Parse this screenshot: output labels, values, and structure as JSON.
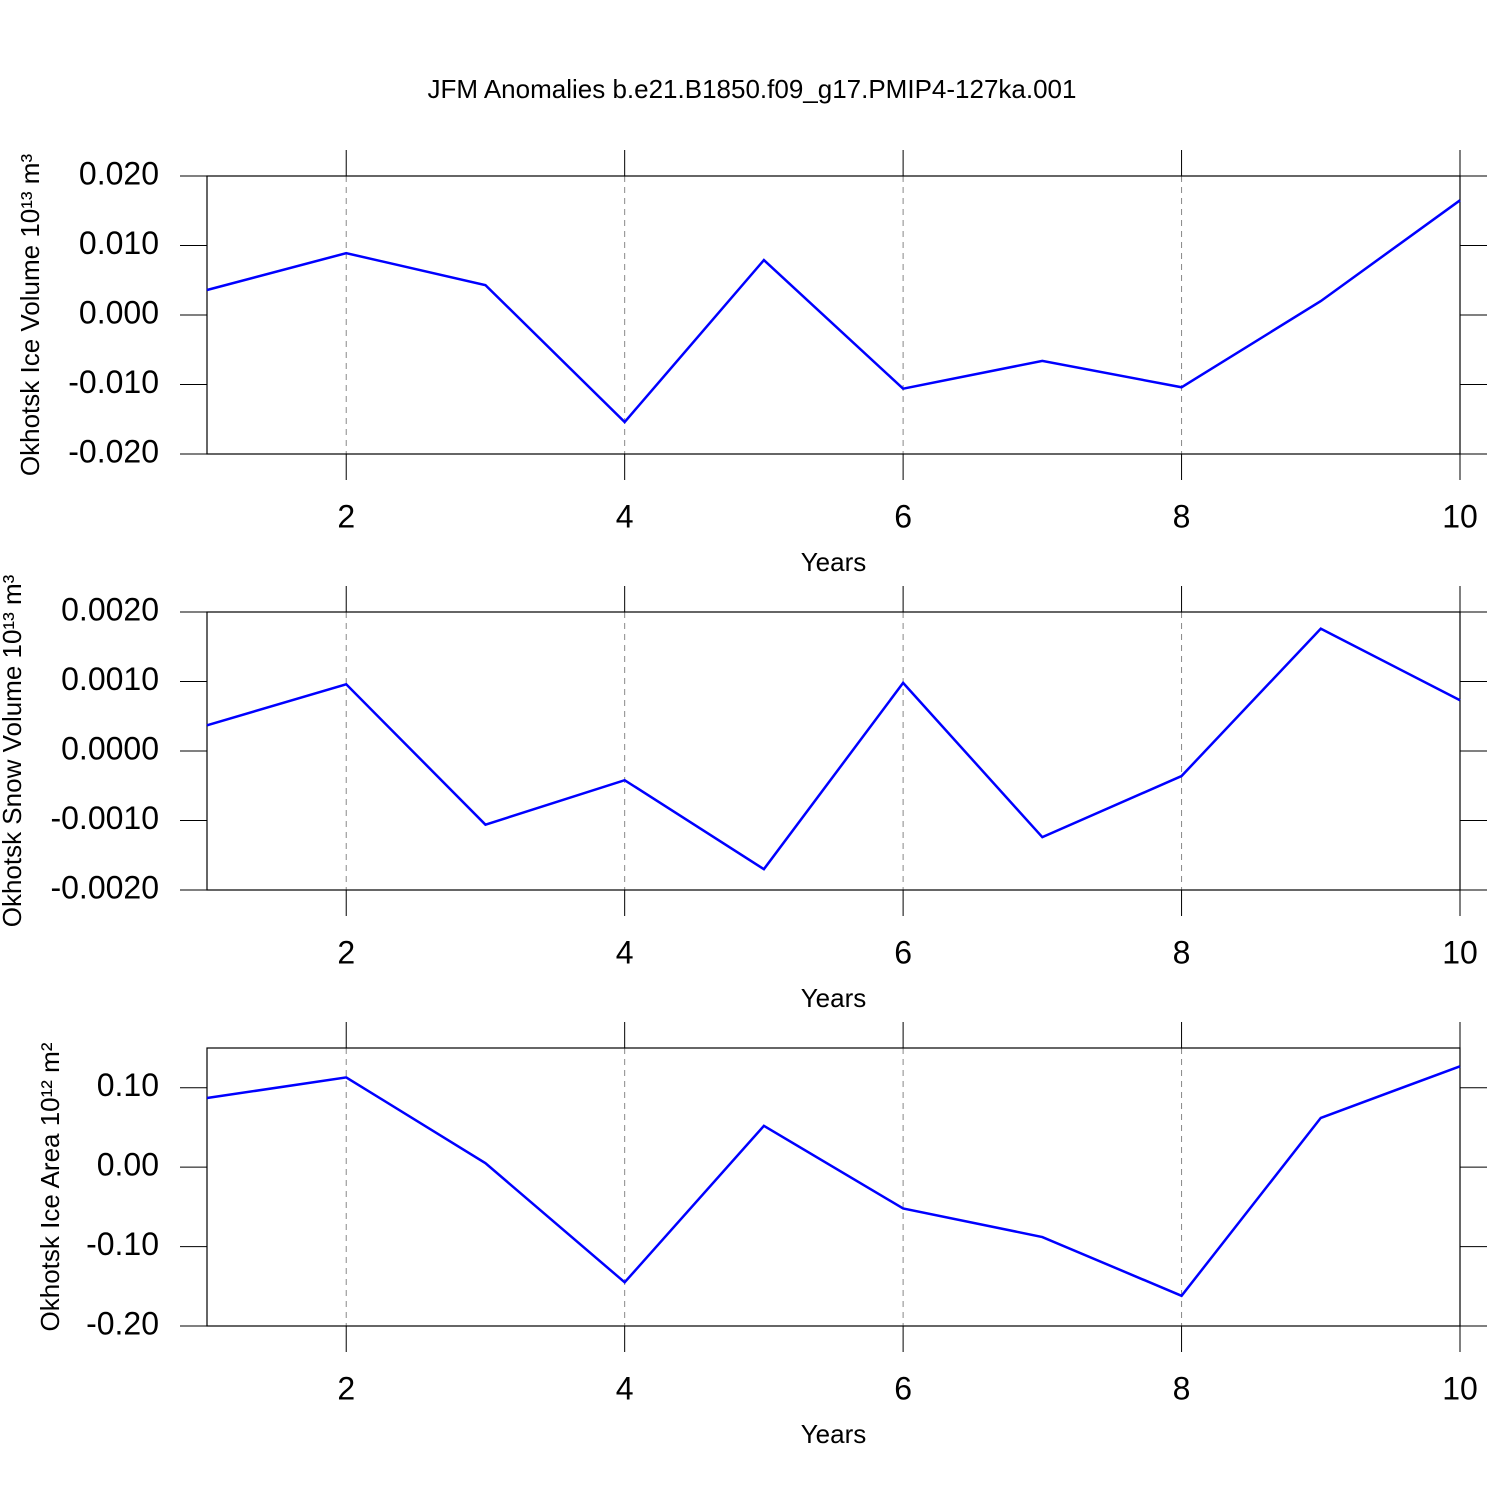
{
  "title": "JFM Anomalies b.e21.B1850.f09_g17.PMIP4-127ka.001",
  "chart_data": [
    {
      "type": "line",
      "xlabel": "Years",
      "ylabel": "Okhotsk Ice Volume 10¹³ m³",
      "x": [
        1,
        2,
        3,
        4,
        5,
        6,
        7,
        8,
        9,
        10
      ],
      "values": [
        0.0036,
        0.0089,
        0.0043,
        -0.0154,
        0.0079,
        -0.0106,
        -0.0066,
        -0.0104,
        0.002,
        0.0165
      ],
      "color": "#0000ff",
      "xlim": [
        1,
        10
      ],
      "xticks": [
        2,
        4,
        6,
        8,
        10
      ],
      "xgrid": true,
      "ylim": [
        -0.02,
        0.02
      ],
      "yticks": [
        {
          "value": -0.02,
          "label": "-0.020"
        },
        {
          "value": -0.01,
          "label": "-0.010"
        },
        {
          "value": 0,
          "label": "0.000"
        },
        {
          "value": 0.01,
          "label": "0.010"
        },
        {
          "value": 0.02,
          "label": "0.020"
        }
      ]
    },
    {
      "type": "line",
      "xlabel": "Years",
      "ylabel": "Okhotsk Snow Volume 10¹³ m³",
      "x": [
        1,
        2,
        3,
        4,
        5,
        6,
        7,
        8,
        9,
        10
      ],
      "values": [
        0.00037,
        0.00096,
        -0.00106,
        -0.00042,
        -0.0017,
        0.00098,
        -0.00124,
        -0.00036,
        0.00176,
        0.00073
      ],
      "color": "#0000ff",
      "xlim": [
        1,
        10
      ],
      "xticks": [
        2,
        4,
        6,
        8,
        10
      ],
      "xgrid": true,
      "ylim": [
        -0.002,
        0.002
      ],
      "yticks": [
        {
          "value": -0.002,
          "label": "-0.0020"
        },
        {
          "value": -0.001,
          "label": "-0.0010"
        },
        {
          "value": 0,
          "label": "0.0000"
        },
        {
          "value": 0.001,
          "label": "0.0010"
        },
        {
          "value": 0.002,
          "label": "0.0020"
        }
      ]
    },
    {
      "type": "line",
      "xlabel": "Years",
      "ylabel": "Okhotsk Ice Area 10¹² m²",
      "x": [
        1,
        2,
        3,
        4,
        5,
        6,
        7,
        8,
        9,
        10
      ],
      "values": [
        0.087,
        0.113,
        0.005,
        -0.145,
        0.052,
        -0.052,
        -0.088,
        -0.162,
        0.062,
        0.127
      ],
      "color": "#0000ff",
      "xlim": [
        1,
        10
      ],
      "xticks": [
        2,
        4,
        6,
        8,
        10
      ],
      "xgrid": true,
      "ylim": [
        -0.2,
        0.15
      ],
      "yticks": [
        {
          "value": -0.2,
          "label": "-0.20"
        },
        {
          "value": -0.1,
          "label": "-0.10"
        },
        {
          "value": 0,
          "label": "0.00"
        },
        {
          "value": 0.1,
          "label": "0.10"
        }
      ]
    }
  ]
}
